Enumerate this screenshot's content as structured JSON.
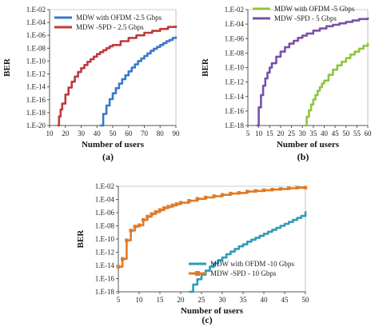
{
  "chart_data": [
    {
      "type": "line",
      "panel_label": "(a)",
      "xlabel": "Number of users",
      "ylabel": "BER",
      "xlim": [
        10,
        90
      ],
      "x_ticks": [
        10,
        20,
        30,
        40,
        50,
        60,
        70,
        80,
        90
      ],
      "y_tick_labels": [
        "1.E-20",
        "1.E-18",
        "1.E-16",
        "1.E-14",
        "1.E-12",
        "1.E-10",
        "1.E-08",
        "1.E-06",
        "1.E-04",
        "1.E-02"
      ],
      "ylim_exp": [
        -20,
        -2
      ],
      "legend_position": "top-left",
      "grid": false,
      "series": [
        {
          "name": "MDW  with OFDM -2.5 Gbps",
          "color": "#3a78c8",
          "marker": "line",
          "x": [
            42,
            44,
            46,
            48,
            50,
            52,
            54,
            56,
            58,
            60,
            62,
            64,
            66,
            68,
            70,
            72,
            74,
            76,
            78,
            80,
            82,
            84,
            86,
            88,
            90
          ],
          "y_exp": [
            -20,
            -18.2,
            -16.9,
            -15.9,
            -15.0,
            -14.2,
            -13.5,
            -12.8,
            -12.2,
            -11.6,
            -11.0,
            -10.5,
            -10.0,
            -9.6,
            -9.2,
            -8.8,
            -8.4,
            -8.1,
            -7.8,
            -7.5,
            -7.2,
            -6.9,
            -6.7,
            -6.4,
            -6.2
          ]
        },
        {
          "name": "MDW -SPD - 2.5 Gbps",
          "color": "#c0393b",
          "marker": "line",
          "x": [
            15,
            16,
            17,
            18,
            20,
            22,
            24,
            26,
            28,
            30,
            32,
            34,
            36,
            38,
            40,
            42,
            44,
            46,
            48,
            50,
            55,
            60,
            65,
            70,
            75,
            80,
            85,
            90
          ],
          "y_exp": [
            -20,
            -18.6,
            -17.5,
            -16.6,
            -15.2,
            -14.1,
            -13.2,
            -12.4,
            -11.7,
            -11.1,
            -10.6,
            -10.1,
            -9.7,
            -9.3,
            -8.9,
            -8.6,
            -8.3,
            -8.0,
            -7.7,
            -7.5,
            -6.9,
            -6.4,
            -6.0,
            -5.6,
            -5.3,
            -5.0,
            -4.7,
            -4.5
          ]
        }
      ]
    },
    {
      "type": "line",
      "panel_label": "(b)",
      "xlabel": "Number of users",
      "ylabel": "BER",
      "xlim": [
        5,
        60
      ],
      "x_ticks": [
        5,
        10,
        15,
        20,
        25,
        30,
        35,
        40,
        45,
        50,
        55,
        60
      ],
      "y_tick_labels": [
        "1.E-18",
        "1.E-16",
        "1.E-14",
        "1.E-12",
        "1.E-10",
        "1.E-08",
        "1.E-06",
        "1.E-04",
        "1.E-02"
      ],
      "ylim_exp": [
        -18,
        -2
      ],
      "legend_position": "top-left",
      "grid": false,
      "series": [
        {
          "name": "MDW with OFDM -5 Gbps",
          "color": "#8dc63f",
          "marker": "line",
          "x": [
            31,
            32,
            33,
            34,
            35,
            36,
            37,
            38,
            39,
            40,
            42,
            44,
            46,
            48,
            50,
            52,
            54,
            56,
            58,
            60
          ],
          "y_exp": [
            -18,
            -16.8,
            -15.9,
            -15.1,
            -14.4,
            -13.8,
            -13.2,
            -12.7,
            -12.2,
            -11.8,
            -11.0,
            -10.3,
            -9.7,
            -9.2,
            -8.7,
            -8.2,
            -7.8,
            -7.4,
            -7.0,
            -6.6
          ]
        },
        {
          "name": "MDW -SPD -  5 Gbps",
          "color": "#7b4fa8",
          "marker": "line",
          "x": [
            9,
            10,
            11,
            12,
            13,
            14,
            15,
            16,
            18,
            20,
            22,
            24,
            26,
            28,
            30,
            32,
            35,
            38,
            41,
            44,
            47,
            50,
            53,
            56,
            60
          ],
          "y_exp": [
            -18,
            -15.5,
            -13.8,
            -12.5,
            -11.5,
            -10.7,
            -10.0,
            -9.4,
            -8.5,
            -7.8,
            -7.2,
            -6.7,
            -6.3,
            -5.9,
            -5.6,
            -5.3,
            -4.9,
            -4.6,
            -4.3,
            -4.1,
            -3.9,
            -3.7,
            -3.5,
            -3.3,
            -3.1
          ]
        }
      ]
    },
    {
      "type": "line",
      "panel_label": "(c)",
      "xlabel": "Number of users",
      "ylabel": "BER",
      "xlim": [
        5,
        50
      ],
      "x_ticks": [
        5,
        10,
        15,
        20,
        25,
        30,
        35,
        40,
        45,
        50
      ],
      "y_tick_labels": [
        "1.E-18",
        "1.E-16",
        "1.E-14",
        "1.E-12",
        "1.E-10",
        "1.E-08",
        "1.E-06",
        "1.E-04",
        "1.E-02"
      ],
      "ylim_exp": [
        -18,
        -2
      ],
      "legend_position": "bottom-right",
      "grid": false,
      "series": [
        {
          "name": "MDW with OFDM -10 Gbps",
          "color": "#2e9bb5",
          "marker": "line",
          "x": [
            22,
            23,
            24,
            25,
            26,
            27,
            28,
            29,
            30,
            31,
            32,
            33,
            34,
            35,
            36,
            37,
            38,
            39,
            40,
            41,
            42,
            43,
            44,
            45,
            46,
            47,
            48,
            49,
            50
          ],
          "y_exp": [
            -18,
            -16.9,
            -16.1,
            -15.4,
            -14.8,
            -14.2,
            -13.7,
            -13.2,
            -12.8,
            -12.3,
            -11.9,
            -11.5,
            -11.1,
            -10.8,
            -10.4,
            -10.1,
            -9.8,
            -9.5,
            -9.2,
            -8.9,
            -8.6,
            -8.3,
            -8.0,
            -7.7,
            -7.4,
            -7.1,
            -6.8,
            -6.5,
            -5.8
          ]
        },
        {
          "name": "MDW -SPD - 10 Gbps",
          "color": "#e07b25",
          "marker": "square",
          "x": [
            5,
            6,
            7,
            8,
            9,
            10,
            11,
            12,
            13,
            14,
            15,
            16,
            17,
            18,
            19,
            20,
            22,
            24,
            26,
            28,
            30,
            32,
            34,
            36,
            38,
            40,
            42,
            44,
            46,
            48,
            50
          ],
          "y_exp": [
            -14.2,
            -13.0,
            -10.2,
            -8.7,
            -8.1,
            -7.9,
            -7.1,
            -6.6,
            -6.2,
            -5.9,
            -5.6,
            -5.3,
            -5.1,
            -4.9,
            -4.7,
            -4.5,
            -4.2,
            -3.9,
            -3.7,
            -3.5,
            -3.3,
            -3.1,
            -3.0,
            -2.8,
            -2.7,
            -2.6,
            -2.5,
            -2.4,
            -2.3,
            -2.2,
            -2.2
          ]
        }
      ]
    }
  ]
}
